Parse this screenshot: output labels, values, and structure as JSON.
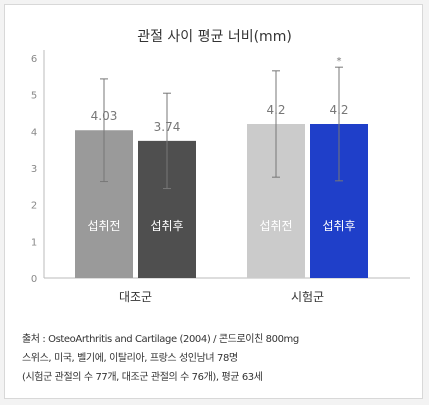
{
  "chart_data": {
    "type": "bar",
    "title": "관절 사이 평균 너비(mm)",
    "categories": [
      "대조군",
      "시험군"
    ],
    "ylim": [
      0,
      6
    ],
    "yticks": [
      0,
      1,
      2,
      3,
      4,
      5,
      6
    ],
    "series": [
      {
        "name": "섭취전",
        "values": [
          4.03,
          4.2
        ],
        "error": [
          1.4,
          1.45
        ],
        "colors": [
          "#9a9a9a",
          "#cbcbcb"
        ]
      },
      {
        "name": "섭취후",
        "values": [
          3.74,
          4.2
        ],
        "error": [
          1.3,
          1.55
        ],
        "colors": [
          "#4f4f4f",
          "#1f3fc9"
        ]
      }
    ],
    "value_labels": [
      [
        "4.03",
        "4.2"
      ],
      [
        "3.74",
        "4.2"
      ]
    ],
    "annotations": [
      {
        "text": "*",
        "group": 1,
        "series": 1
      }
    ],
    "grid": false
  },
  "source": {
    "line1": "출처 : OsteoArthritis and Cartilage (2004) / 콘드로이친 800mg",
    "line2": "스위스, 미국, 벨기에, 이탈리아, 프랑스 성인남녀 78명",
    "line3": "(시험군 관절의 수 77개, 대조군 관절의 수 76개), 평균 63세"
  }
}
